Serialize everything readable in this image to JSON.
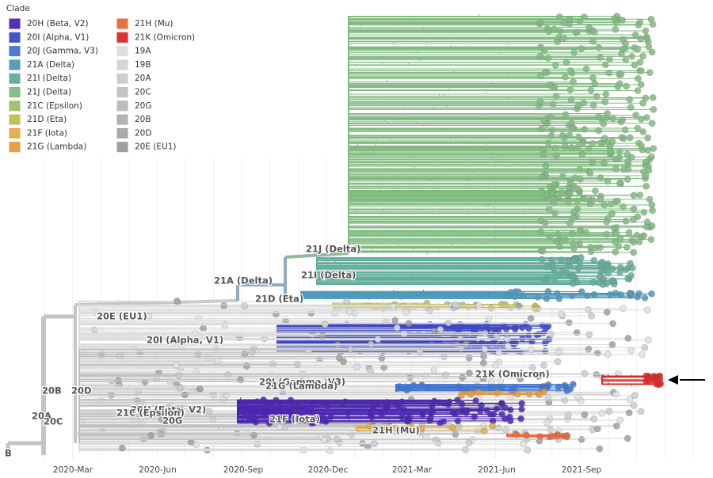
{
  "legend": {
    "title": "Clade",
    "items": [
      {
        "label": "20H (Beta, V2)",
        "color": "#4B26B1"
      },
      {
        "label": "20I (Alpha, V1)",
        "color": "#3F47C9"
      },
      {
        "label": "20J (Gamma, V3)",
        "color": "#4274CE"
      },
      {
        "label": "21A (Delta)",
        "color": "#4F97BB"
      },
      {
        "label": "21I (Delta)",
        "color": "#64AC9A"
      },
      {
        "label": "21J (Delta)",
        "color": "#81BA81"
      },
      {
        "label": "21C (Epsilon)",
        "color": "#A2BE66"
      },
      {
        "label": "21D (Eta)",
        "color": "#C3BB52"
      },
      {
        "label": "21F (Iota)",
        "color": "#E0AC46"
      },
      {
        "label": "21G (Lambda)",
        "color": "#E69A3E"
      },
      {
        "label": "21H (Mu)",
        "color": "#E56A38"
      },
      {
        "label": "21K (Omicron)",
        "color": "#DB2823"
      },
      {
        "label": "19A",
        "color": "#DCDCDC"
      },
      {
        "label": "19B",
        "color": "#D3D3D3"
      },
      {
        "label": "20A",
        "color": "#CACACA"
      },
      {
        "label": "20C",
        "color": "#C0C0C0"
      },
      {
        "label": "20G",
        "color": "#B8B8B8"
      },
      {
        "label": "20B",
        "color": "#AEAEAE"
      },
      {
        "label": "20D",
        "color": "#A5A5A5"
      },
      {
        "label": "20E (EU1)",
        "color": "#9B9B9B"
      }
    ]
  },
  "axis": {
    "ticks": [
      "2020-Mar",
      "2020-Jun",
      "2020-Sep",
      "2020-Dec",
      "2021-Mar",
      "2021-Jun",
      "2021-Sep"
    ]
  },
  "clade_labels": [
    "21J (Delta)",
    "21A (Delta)",
    "21I (Delta)",
    "21D (Eta)",
    "20E (EU1)",
    "20I (Alpha, V1)",
    "21K (Omicron)",
    "20J (Gamma, V3)",
    "21G (Lambda)",
    "20B",
    "20D",
    "20H (Beta, V2)",
    "20A",
    "21C (Epsilon)",
    "20C",
    "20G",
    "21F (Iota)",
    "21H (Mu)",
    "B"
  ]
}
